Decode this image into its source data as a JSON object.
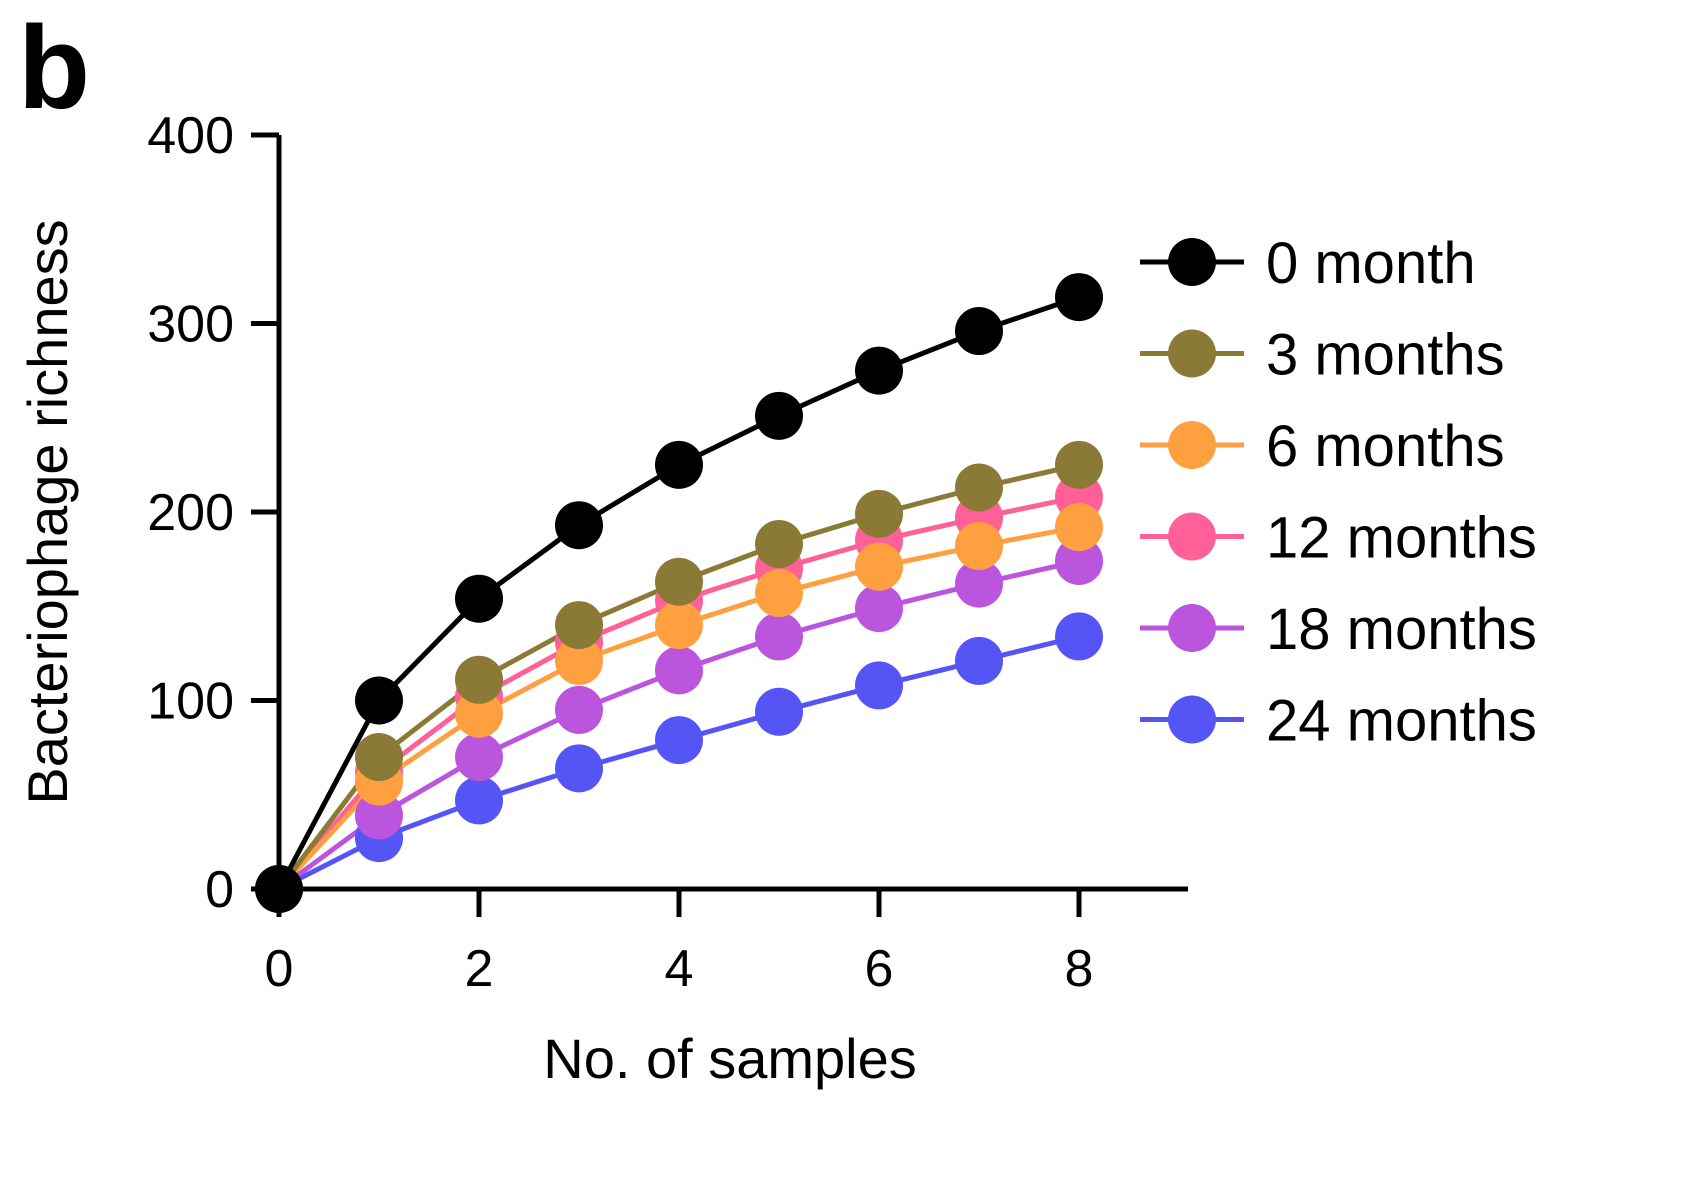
{
  "panel_label": "b",
  "chart_data": {
    "type": "line",
    "title": "",
    "xlabel": "No. of samples",
    "ylabel": "Bacteriophage richness",
    "xlim": [
      0,
      9
    ],
    "ylim": [
      0,
      400
    ],
    "xticks": [
      0,
      2,
      4,
      6,
      8
    ],
    "yticks": [
      0,
      100,
      200,
      300,
      400
    ],
    "grid": false,
    "legend_position": "right",
    "x": [
      0,
      1,
      2,
      3,
      4,
      5,
      6,
      7,
      8
    ],
    "series": [
      {
        "name": "0 month",
        "color": "#000000",
        "values": [
          0,
          100,
          154,
          193,
          225,
          251,
          275,
          296,
          314
        ]
      },
      {
        "name": "3 months",
        "color": "#8b7a35",
        "values": [
          0,
          70,
          111,
          140,
          163,
          183,
          199,
          213,
          225
        ]
      },
      {
        "name": "6 months",
        "color": "#ffa040",
        "values": [
          0,
          57,
          93,
          121,
          140,
          157,
          171,
          182,
          192
        ]
      },
      {
        "name": "12 months",
        "color": "#ff6098",
        "values": [
          0,
          62,
          102,
          131,
          153,
          170,
          185,
          197,
          208
        ]
      },
      {
        "name": "18 months",
        "color": "#bb55dd",
        "values": [
          0,
          39,
          70,
          95,
          116,
          134,
          149,
          162,
          174
        ]
      },
      {
        "name": "24 months",
        "color": "#5555f5",
        "values": [
          0,
          27,
          47,
          64,
          79,
          94,
          108,
          121,
          134
        ]
      }
    ]
  }
}
